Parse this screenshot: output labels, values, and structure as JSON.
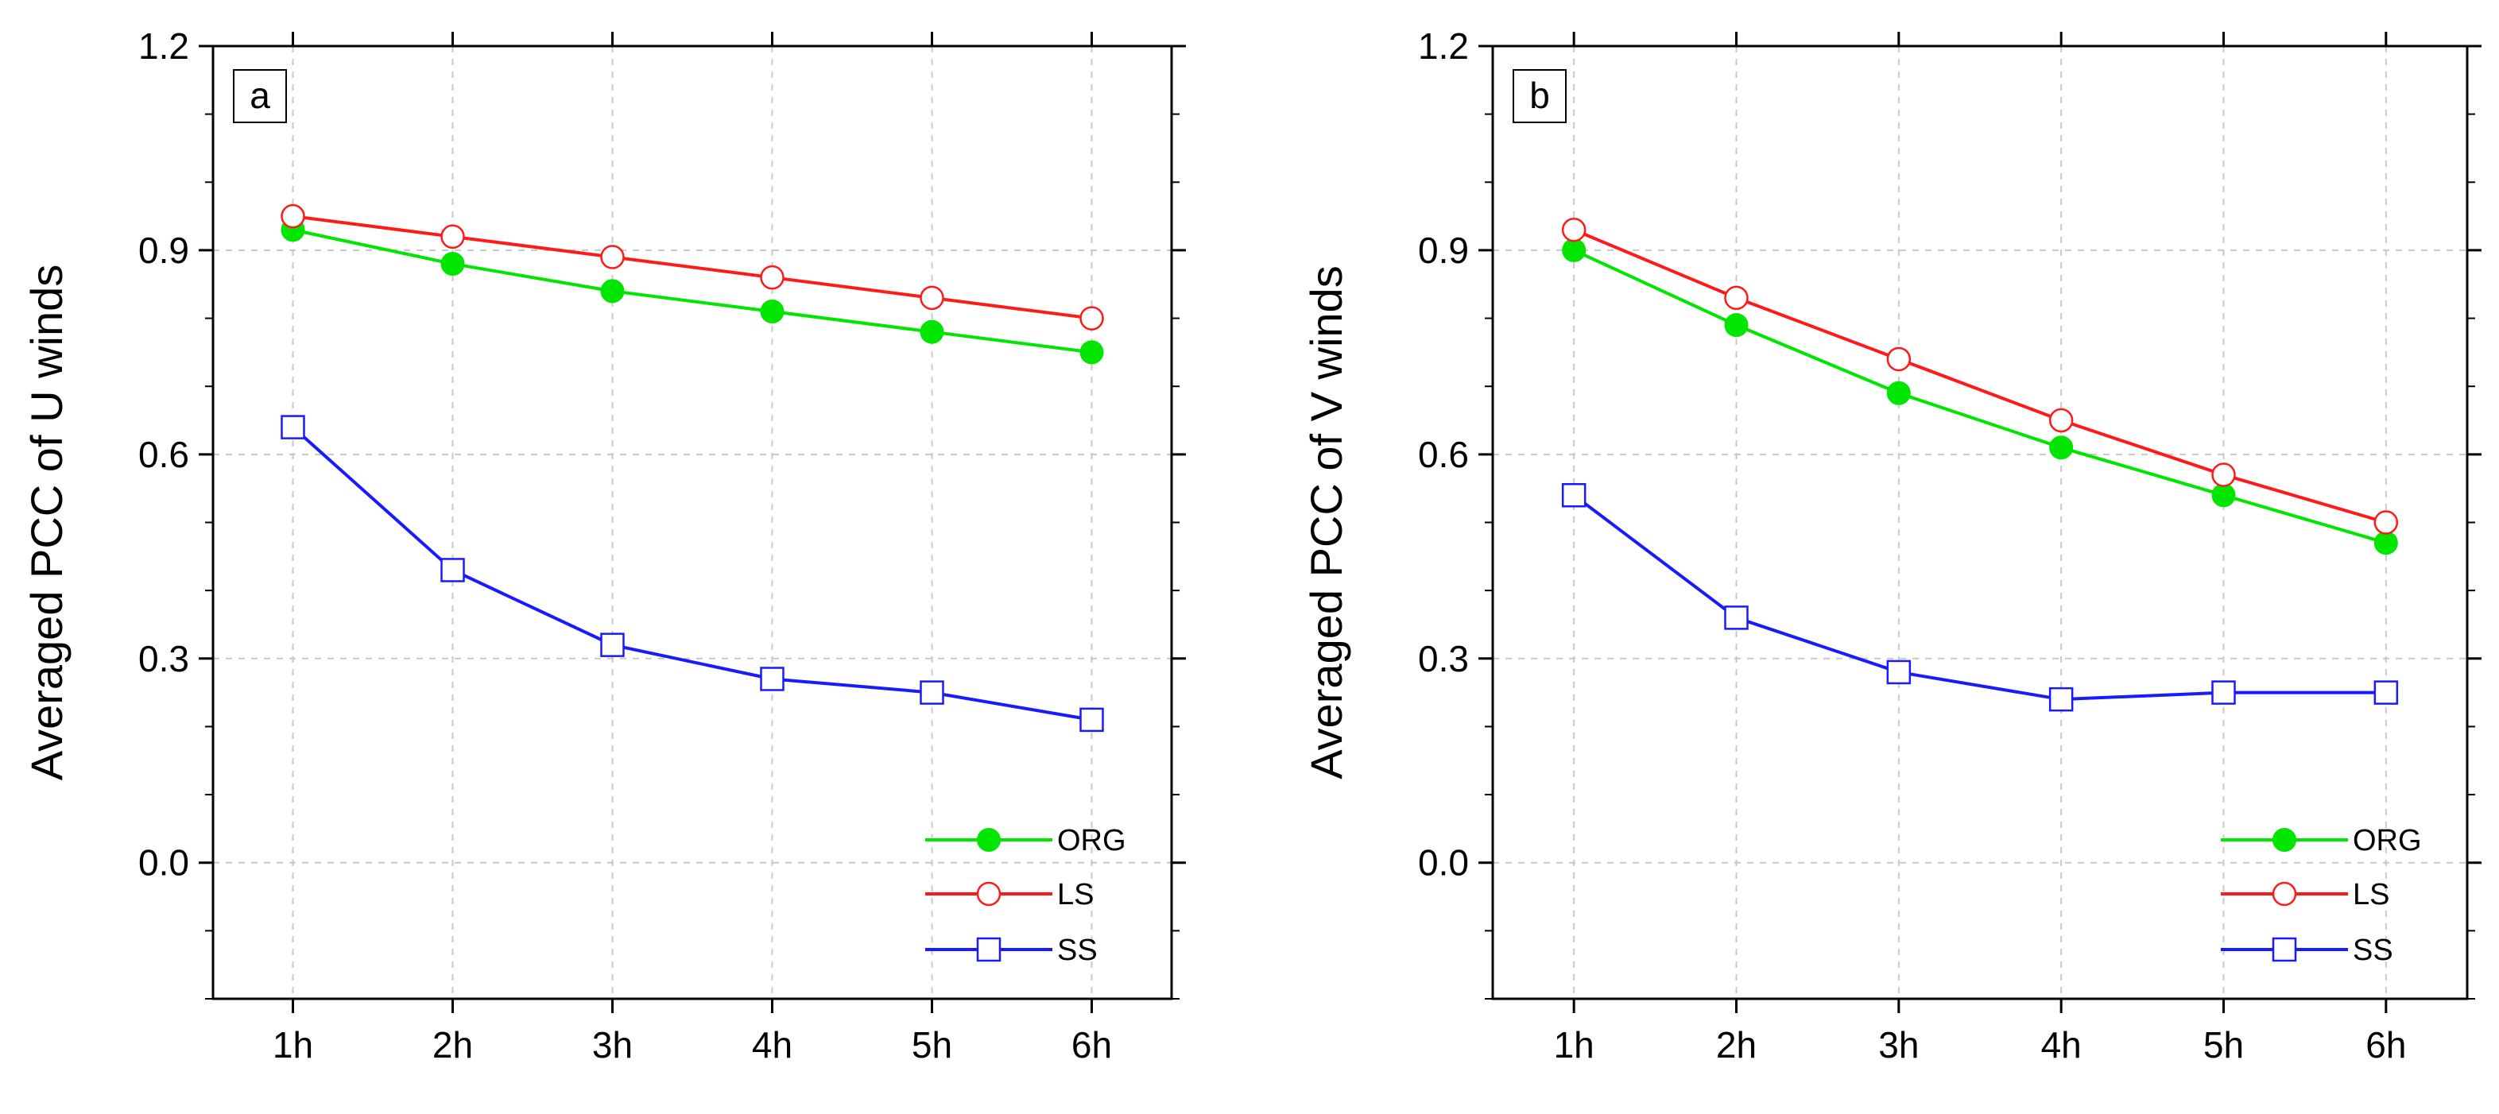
{
  "chart_data": [
    {
      "type": "line",
      "panel_label": "a",
      "title": "",
      "xlabel": "",
      "ylabel": "Averaged PCC of U winds",
      "categories": [
        "1h",
        "2h",
        "3h",
        "4h",
        "5h",
        "6h"
      ],
      "ylim": [
        -0.2,
        1.2
      ],
      "yticks": [
        "0.0",
        "0.3",
        "0.6",
        "0.9",
        "1.2"
      ],
      "grid": true,
      "legend_position": "bottom-right",
      "series": [
        {
          "name": "ORG",
          "color": "#00e600",
          "marker": "filled-circle",
          "values": [
            0.93,
            0.88,
            0.84,
            0.81,
            0.78,
            0.75
          ]
        },
        {
          "name": "LS",
          "color": "#ff1a1a",
          "marker": "open-circle",
          "values": [
            0.95,
            0.92,
            0.89,
            0.86,
            0.83,
            0.8
          ]
        },
        {
          "name": "SS",
          "color": "#1a1aff",
          "marker": "open-square",
          "values": [
            0.64,
            0.43,
            0.32,
            0.27,
            0.25,
            0.21
          ]
        }
      ]
    },
    {
      "type": "line",
      "panel_label": "b",
      "title": "",
      "xlabel": "",
      "ylabel": "Averaged PCC of V winds",
      "categories": [
        "1h",
        "2h",
        "3h",
        "4h",
        "5h",
        "6h"
      ],
      "ylim": [
        -0.2,
        1.2
      ],
      "yticks": [
        "0.0",
        "0.3",
        "0.6",
        "0.9",
        "1.2"
      ],
      "grid": true,
      "legend_position": "bottom-right",
      "series": [
        {
          "name": "ORG",
          "color": "#00e600",
          "marker": "filled-circle",
          "values": [
            0.9,
            0.79,
            0.69,
            0.61,
            0.54,
            0.47
          ]
        },
        {
          "name": "LS",
          "color": "#ff1a1a",
          "marker": "open-circle",
          "values": [
            0.93,
            0.83,
            0.74,
            0.65,
            0.57,
            0.5
          ]
        },
        {
          "name": "SS",
          "color": "#1a1aff",
          "marker": "open-square",
          "values": [
            0.54,
            0.36,
            0.28,
            0.24,
            0.25,
            0.25
          ]
        }
      ]
    }
  ]
}
